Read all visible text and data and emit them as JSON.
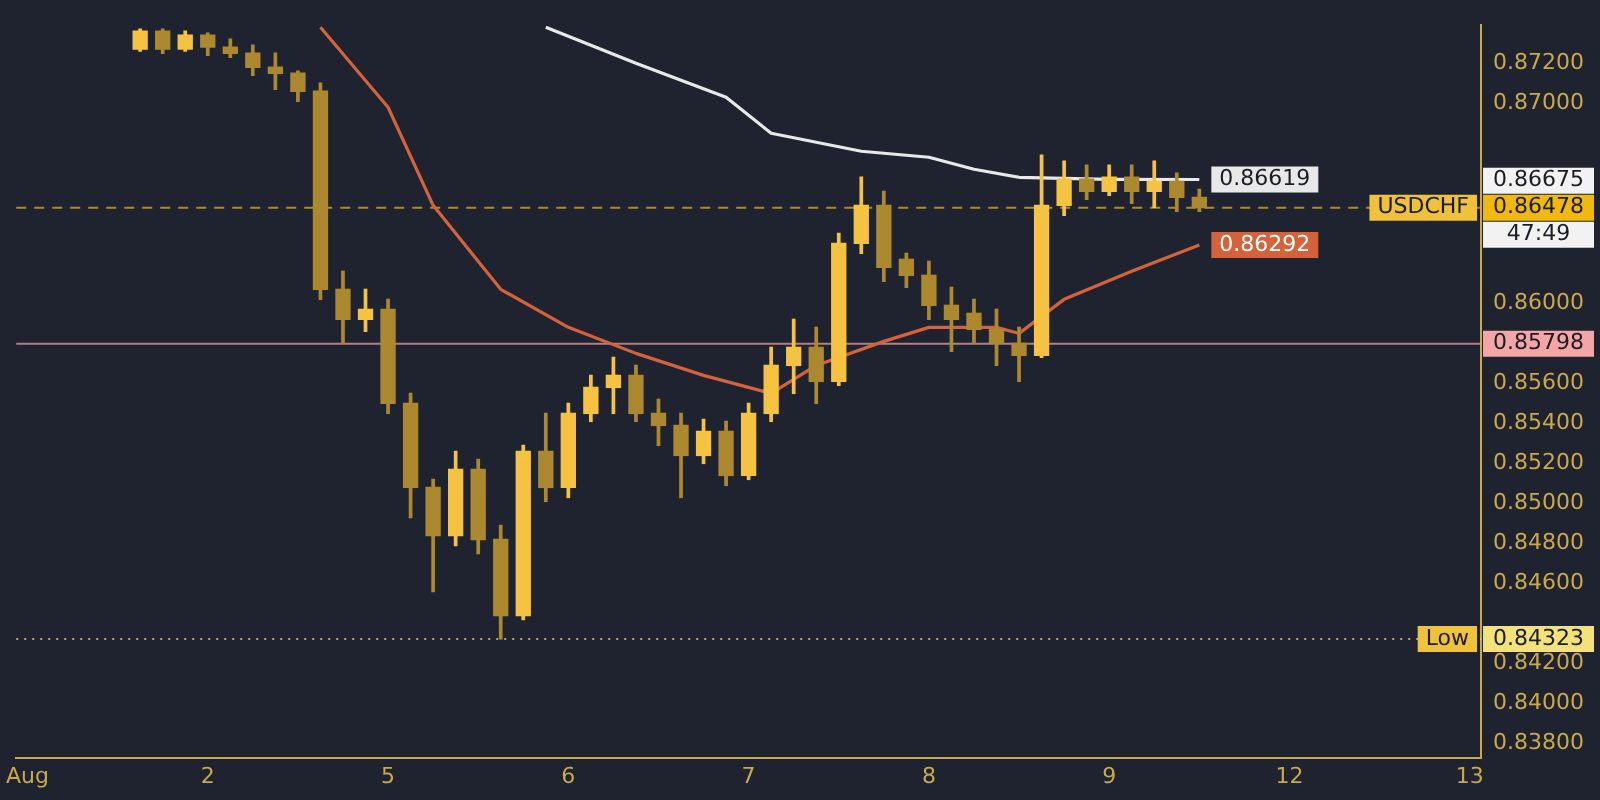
{
  "chart_data": {
    "type": "candlestick",
    "colors": [
      null,
      null,
      null,
      null,
      null,
      "#f5c242",
      "#ac882e",
      "#f5c242",
      "#ac882e",
      "#ac882e",
      "#ac882e",
      "#ac882e",
      "#ac882e",
      "#ac882e",
      "#ac882e",
      "#f5c242",
      "#ac882e",
      "#ac882e",
      "#ac882e",
      "#f5c242",
      "#ac882e",
      "#ac882e",
      "#f5c242",
      "#ac882e",
      "#f5c242",
      "#f5c242",
      "#f5c242",
      "#ac882e",
      "#ac882e",
      "#ac882e",
      "#f5c242",
      "#ac882e",
      "#f5c242",
      "#f5c242",
      "#f5c242",
      "#ac882e",
      "#f5c242",
      "#f5c242",
      "#ac882e",
      "#ac882e",
      "#ac882e",
      "#ac882e",
      "#ac882e",
      "#ac882e",
      "#ac882e",
      "#f5c242",
      "#f5c242",
      "#ac882e",
      "#f5c242",
      "#ac882e",
      "#f5c242",
      "#ac882e",
      "#ac882e",
      null,
      null,
      null,
      null,
      null,
      null,
      null,
      null,
      null,
      null,
      null,
      null
    ],
    "categories": [
      "Aug",
      null,
      null,
      null,
      null,
      null,
      null,
      null,
      "2",
      null,
      null,
      null,
      null,
      null,
      null,
      null,
      "5",
      null,
      null,
      null,
      null,
      null,
      null,
      null,
      "6",
      null,
      null,
      null,
      null,
      null,
      null,
      null,
      "7",
      null,
      null,
      null,
      null,
      null,
      null,
      null,
      "8",
      null,
      null,
      null,
      null,
      null,
      null,
      null,
      "9",
      null,
      null,
      null,
      null,
      null,
      null,
      null,
      "12",
      null,
      null,
      null,
      null,
      null,
      null,
      null,
      "13"
    ],
    "ohlc": [
      null,
      null,
      null,
      null,
      null,
      [
        0.8727,
        0.8737,
        0.8726,
        0.8736
      ],
      [
        0.8736,
        0.8737,
        0.8725,
        0.8727
      ],
      [
        0.8727,
        0.8736,
        0.8726,
        0.8734
      ],
      [
        0.8734,
        0.8735,
        0.8724,
        0.8728
      ],
      [
        0.8728,
        0.8732,
        0.8723,
        0.8725
      ],
      [
        0.8725,
        0.8729,
        0.8714,
        0.8718
      ],
      [
        0.8718,
        0.8725,
        0.8707,
        0.8715
      ],
      [
        0.8715,
        0.8716,
        0.8701,
        0.8706
      ],
      [
        0.8706,
        0.871,
        0.8602,
        0.8607
      ],
      [
        0.8607,
        0.8616,
        0.858,
        0.8592
      ],
      [
        0.8592,
        0.8607,
        0.8586,
        0.8597
      ],
      [
        0.8597,
        0.8602,
        0.8545,
        0.855
      ],
      [
        0.855,
        0.8555,
        0.8493,
        0.8508
      ],
      [
        0.8508,
        0.8512,
        0.8456,
        0.8484
      ],
      [
        0.8484,
        0.8526,
        0.8479,
        0.8517
      ],
      [
        0.8517,
        0.8522,
        0.8475,
        0.8482
      ],
      [
        0.8482,
        0.8489,
        0.84323,
        0.8444
      ],
      [
        0.8444,
        0.8529,
        0.8442,
        0.8526
      ],
      [
        0.8526,
        0.8545,
        0.8501,
        0.8508
      ],
      [
        0.8508,
        0.855,
        0.8503,
        0.8545
      ],
      [
        0.8545,
        0.8564,
        0.8541,
        0.8558
      ],
      [
        0.8558,
        0.8573,
        0.8545,
        0.8564
      ],
      [
        0.8564,
        0.8569,
        0.8541,
        0.8545
      ],
      [
        0.8545,
        0.8552,
        0.8529,
        0.8539
      ],
      [
        0.8539,
        0.8545,
        0.8503,
        0.8524
      ],
      [
        0.8524,
        0.8542,
        0.852,
        0.8536
      ],
      [
        0.8536,
        0.8541,
        0.8509,
        0.8514
      ],
      [
        0.8514,
        0.855,
        0.8512,
        0.8545
      ],
      [
        0.8545,
        0.8578,
        0.8541,
        0.8569
      ],
      [
        0.8569,
        0.8592,
        0.8555,
        0.8578
      ],
      [
        0.8578,
        0.8588,
        0.855,
        0.8561
      ],
      [
        0.8561,
        0.8635,
        0.8559,
        0.863
      ],
      [
        0.863,
        0.8663,
        0.8625,
        0.8649
      ],
      [
        0.8649,
        0.8656,
        0.8611,
        0.8618
      ],
      [
        0.8622,
        0.8625,
        0.8608,
        0.8614
      ],
      [
        0.8614,
        0.8621,
        0.8592,
        0.8599
      ],
      [
        0.8599,
        0.8608,
        0.8576,
        0.8592
      ],
      [
        0.8595,
        0.8602,
        0.858,
        0.8587
      ],
      [
        0.8587,
        0.8597,
        0.8569,
        0.858
      ],
      [
        0.858,
        0.8588,
        0.8561,
        0.8574
      ],
      [
        0.8574,
        0.8674,
        0.8573,
        0.8649
      ],
      [
        0.8649,
        0.8671,
        0.8644,
        0.8662
      ],
      [
        0.8662,
        0.8669,
        0.8652,
        0.8656
      ],
      [
        0.8656,
        0.8669,
        0.8654,
        0.8663
      ],
      [
        0.8663,
        0.8669,
        0.865,
        0.8656
      ],
      [
        0.8656,
        0.8671,
        0.8648,
        0.8661
      ],
      [
        0.8661,
        0.8665,
        0.8646,
        0.8653
      ],
      [
        0.8653,
        0.8657,
        0.8646,
        0.86478
      ],
      null,
      null,
      null,
      null,
      null,
      null,
      null,
      null,
      null,
      null,
      null,
      null
    ],
    "series": [
      {
        "type": "line",
        "color": "#e8e8e8",
        "values": [
          null,
          null,
          null,
          null,
          null,
          null,
          null,
          null,
          null,
          null,
          null,
          null,
          null,
          null,
          null,
          null,
          null,
          null,
          null,
          null,
          null,
          null,
          null,
          0.8738,
          null,
          null,
          null,
          0.872,
          null,
          null,
          null,
          0.8703,
          null,
          0.8685,
          null,
          null,
          null,
          0.8676,
          null,
          null,
          0.8673,
          null,
          0.8667,
          null,
          0.8663,
          null,
          null,
          null,
          0.8662,
          null,
          null,
          null,
          0.86619,
          null,
          null,
          null,
          null,
          null,
          null,
          null,
          null,
          null,
          null,
          null,
          null
        ],
        "value_labels": [
          null,
          null,
          null,
          null,
          null,
          null,
          null,
          null,
          null,
          null,
          null,
          null,
          null,
          null,
          null,
          null,
          null,
          null,
          null,
          null,
          null,
          null,
          null,
          null,
          null,
          null,
          null,
          null,
          null,
          null,
          null,
          null,
          null,
          null,
          null,
          null,
          null,
          null,
          null,
          null,
          null,
          null,
          null,
          null,
          null,
          null,
          null,
          null,
          null,
          null,
          null,
          null,
          "0.86619",
          null,
          null,
          null,
          null,
          null,
          null,
          null,
          null,
          null,
          null,
          null,
          null
        ]
      },
      {
        "type": "line",
        "color": "#d4623a",
        "values": [
          null,
          null,
          null,
          null,
          null,
          null,
          null,
          null,
          null,
          null,
          null,
          null,
          null,
          0.8738,
          null,
          null,
          0.8698,
          null,
          0.8649,
          null,
          null,
          0.8607,
          null,
          null,
          0.8588,
          null,
          null,
          0.8575,
          null,
          null,
          0.8564,
          null,
          null,
          0.8555,
          null,
          0.8569,
          null,
          null,
          0.8581,
          null,
          0.8588,
          null,
          null,
          0.8588,
          0.8585,
          null,
          0.8602,
          null,
          null,
          0.8616,
          null,
          null,
          0.86292,
          null,
          null,
          null,
          null,
          null,
          null,
          null,
          null,
          null,
          null,
          null,
          null
        ],
        "value_labels": [
          null,
          null,
          null,
          null,
          null,
          null,
          null,
          null,
          null,
          null,
          null,
          null,
          null,
          null,
          null,
          null,
          null,
          null,
          null,
          null,
          null,
          null,
          null,
          null,
          null,
          null,
          null,
          null,
          null,
          null,
          null,
          null,
          null,
          null,
          null,
          null,
          null,
          null,
          null,
          null,
          null,
          null,
          null,
          null,
          null,
          null,
          null,
          null,
          null,
          null,
          null,
          null,
          "0.86292",
          null,
          null,
          null,
          null,
          null,
          null,
          null,
          null,
          null,
          null,
          null,
          null
        ]
      }
    ],
    "ylim": [
      0.8373,
      0.8739
    ],
    "yticks": [
      {
        "value": 0.838,
        "label": "0.83800"
      },
      {
        "value": 0.84,
        "label": "0.84000"
      },
      {
        "value": 0.842,
        "label": "0.84200"
      },
      {
        "value": 0.846,
        "label": "0.84600"
      },
      {
        "value": 0.848,
        "label": "0.84800"
      },
      {
        "value": 0.85,
        "label": "0.85000"
      },
      {
        "value": 0.852,
        "label": "0.85200"
      },
      {
        "value": 0.854,
        "label": "0.85400"
      },
      {
        "value": 0.856,
        "label": "0.85600"
      },
      {
        "value": 0.86,
        "label": "0.86000"
      },
      {
        "value": 0.87,
        "label": "0.87000"
      },
      {
        "value": 0.872,
        "label": "0.87200"
      }
    ],
    "ref_lines": [
      {
        "axis": "y",
        "value": 0.86478,
        "label": "0.86478",
        "color": "#f0b90b",
        "line_style": "dashed"
      },
      {
        "axis": "y",
        "value": 0.85798,
        "label": "0.85798",
        "color": "#f4a6a6",
        "line_style": "solid"
      },
      {
        "axis": "y",
        "value": 0.84323,
        "label": "0.84323",
        "color": "#f3e27a",
        "line_style": "dotted"
      }
    ],
    "annotations": [
      {
        "text": "USDCHF",
        "y": 0.86478
      },
      {
        "text": "Low",
        "y": 0.84323
      },
      "0.86675",
      "47:49"
    ]
  }
}
